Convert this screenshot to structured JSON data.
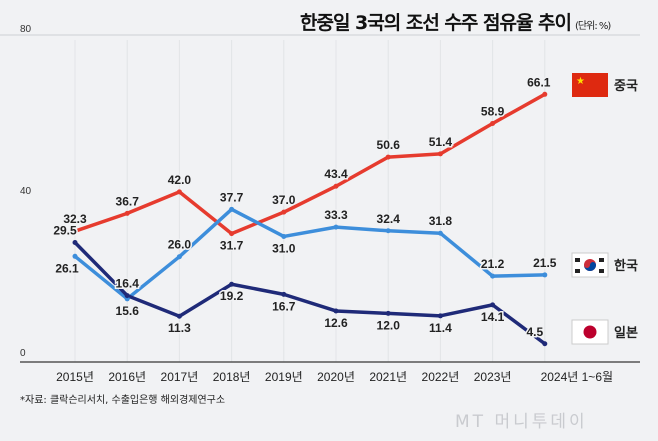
{
  "chart_data": {
    "type": "line",
    "title": "한중일 3국의 조선 수주 점유율 추이",
    "unit": "(단위: %)",
    "categories": [
      "2015년",
      "2016년",
      "2017년",
      "2018년",
      "2019년",
      "2020년",
      "2021년",
      "2022년",
      "2023년",
      "2024년 1~6월"
    ],
    "ylim": [
      0,
      80
    ],
    "yticks": [
      "0",
      "40",
      "80"
    ],
    "grid": "vertical",
    "legend": "right",
    "series": [
      {
        "name": "중국",
        "color": "#e63b2e",
        "values": [
          32.3,
          36.7,
          42.0,
          31.7,
          37.0,
          43.4,
          50.6,
          51.4,
          58.9,
          66.1
        ]
      },
      {
        "name": "한국",
        "color": "#3d8edb",
        "values": [
          26.1,
          15.6,
          26.0,
          37.7,
          31.0,
          33.3,
          32.4,
          31.8,
          21.2,
          21.5
        ]
      },
      {
        "name": "일본",
        "color": "#1f2a78",
        "values": [
          29.5,
          16.4,
          11.3,
          19.2,
          16.7,
          12.6,
          12.0,
          11.4,
          14.1,
          4.5
        ]
      }
    ],
    "source": "*자료: 클락슨리서치, 수출입은행 해외경제연구소"
  },
  "watermark": "MT 머니투데이",
  "flag_icons": [
    "china-flag-icon",
    "korea-flag-icon",
    "japan-flag-icon"
  ]
}
